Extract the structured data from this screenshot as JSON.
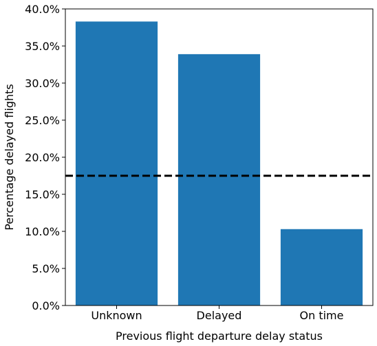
{
  "chart_data": {
    "type": "bar",
    "categories": [
      "Unknown",
      "Delayed",
      "On time"
    ],
    "values": [
      38.3,
      33.9,
      10.3
    ],
    "bar_color": "#1f77b4",
    "xlabel": "Previous flight departure delay status",
    "ylabel": "Percentage delayed flights",
    "ylim": [
      0,
      40
    ],
    "yticks": [
      0,
      5,
      10,
      15,
      20,
      25,
      30,
      35,
      40
    ],
    "ytick_labels": [
      "0.0%",
      "5.0%",
      "10.0%",
      "15.0%",
      "20.0%",
      "25.0%",
      "30.0%",
      "35.0%",
      "40.0%"
    ],
    "reference_line": {
      "value": 17.5,
      "style": "dashed",
      "color": "#000000"
    },
    "grid": false
  }
}
